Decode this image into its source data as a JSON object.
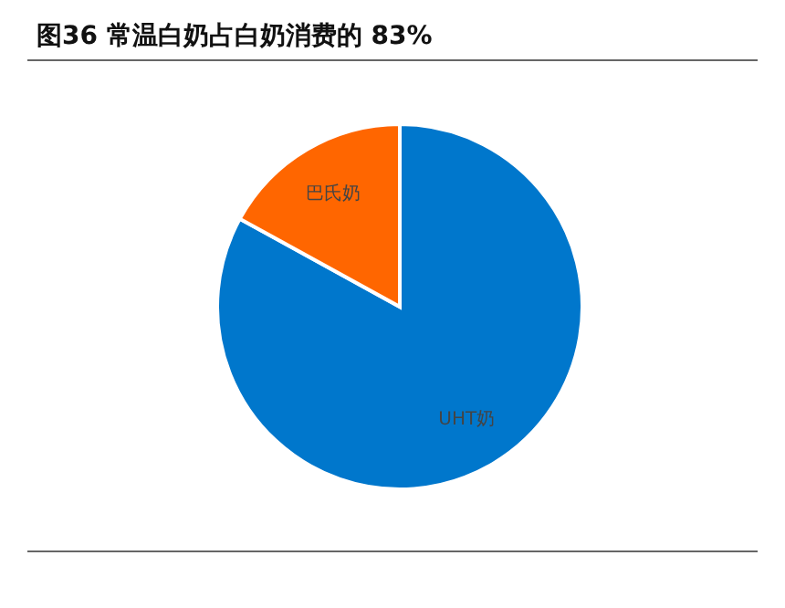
{
  "chart_data": {
    "type": "pie",
    "title": "图36 常温白奶占白奶消费的 83%",
    "categories": [
      "UHT奶",
      "巴氏奶"
    ],
    "values": [
      83,
      17
    ],
    "colors": [
      "#0077cc",
      "#ff6600"
    ],
    "legend": false
  }
}
